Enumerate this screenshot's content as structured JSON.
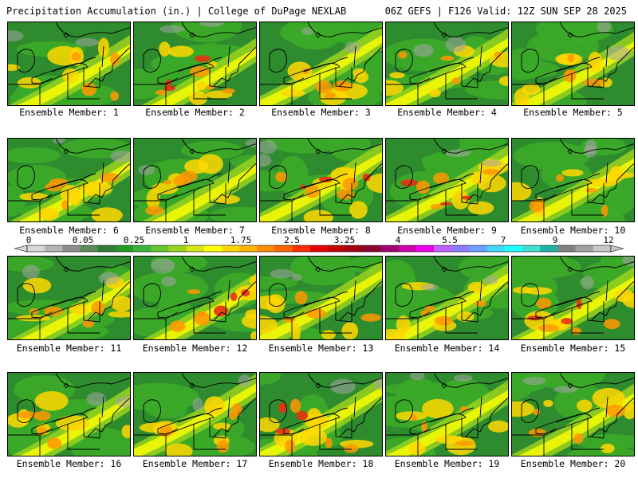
{
  "header": {
    "left": "Precipitation Accumulation (in.) | College of DuPage NEXLAB",
    "right": "06Z GEFS | F126 Valid: 12Z SUN SEP 28 2025"
  },
  "members": [
    {
      "label": "Ensemble Member: 1"
    },
    {
      "label": "Ensemble Member: 2"
    },
    {
      "label": "Ensemble Member: 3"
    },
    {
      "label": "Ensemble Member: 4"
    },
    {
      "label": "Ensemble Member: 5"
    },
    {
      "label": "Ensemble Member: 6"
    },
    {
      "label": "Ensemble Member: 7"
    },
    {
      "label": "Ensemble Member: 8"
    },
    {
      "label": "Ensemble Member: 9"
    },
    {
      "label": "Ensemble Member: 10"
    },
    {
      "label": "Ensemble Member: 11"
    },
    {
      "label": "Ensemble Member: 12"
    },
    {
      "label": "Ensemble Member: 13"
    },
    {
      "label": "Ensemble Member: 14"
    },
    {
      "label": "Ensemble Member: 15"
    },
    {
      "label": "Ensemble Member: 16"
    },
    {
      "label": "Ensemble Member: 17"
    },
    {
      "label": "Ensemble Member: 18"
    },
    {
      "label": "Ensemble Member: 19"
    },
    {
      "label": "Ensemble Member: 20"
    }
  ],
  "colorbar": {
    "labels": [
      "0",
      "0.05",
      "0.25",
      "1",
      "1.75",
      "2.5",
      "3.25",
      "4",
      "5.5",
      "7",
      "9",
      "12"
    ],
    "colors": [
      "#d8d8d8",
      "#b4b4b4",
      "#8e8e8e",
      "#5a8a5a",
      "#2e7d32",
      "#239a23",
      "#3cb33c",
      "#62c62c",
      "#9ad21e",
      "#d6e617",
      "#ffff00",
      "#ffd700",
      "#ffb400",
      "#ff8c00",
      "#ff6400",
      "#ff2d00",
      "#e60000",
      "#c00000",
      "#a00010",
      "#8b0030",
      "#a00070",
      "#cc00aa",
      "#ee00ee",
      "#c060ff",
      "#8a7cff",
      "#6aa0ff",
      "#40d8ff",
      "#20ffff",
      "#40e0d0",
      "#20b2aa",
      "#808080",
      "#a0a0a0",
      "#c8c8c8"
    ]
  }
}
